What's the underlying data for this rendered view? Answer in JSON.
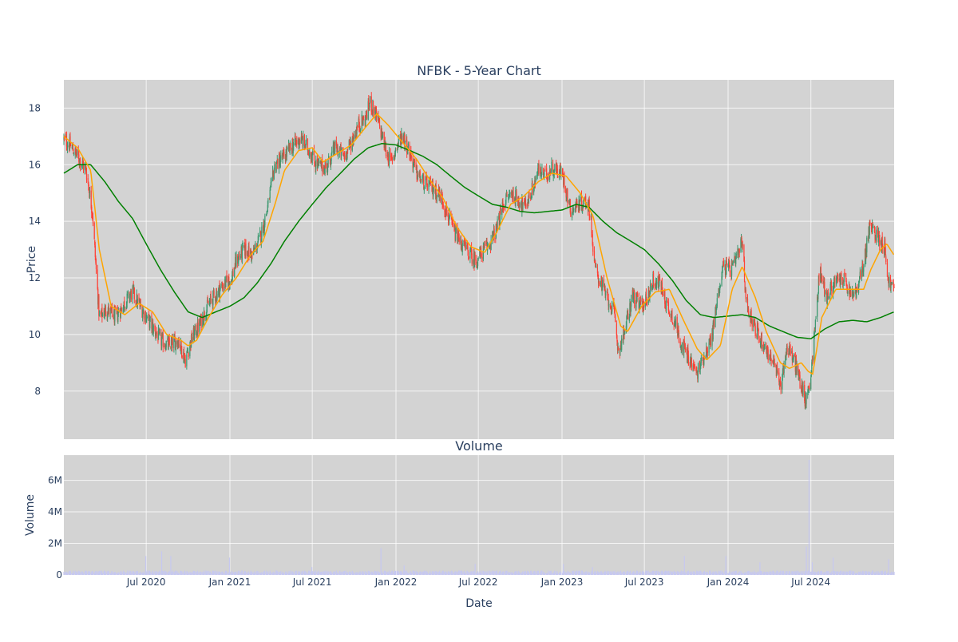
{
  "chart_data": {
    "type": "candlestick",
    "title": "NFBK - 5-Year Chart",
    "colors": {
      "increasing": "#3d9970",
      "decreasing": "#ff4136",
      "ma_short": "#ffa500",
      "ma_long": "#008000",
      "volume": "#c6c8f0",
      "plot_bg": "#d3d3d3",
      "grid": "#ffffff",
      "text": "#2a3f5f"
    },
    "x_range": [
      "2020-01-02",
      "2024-12-31"
    ],
    "x_ticks": [
      "2020-07-01",
      "2021-01-01",
      "2021-07-01",
      "2022-01-01",
      "2022-07-01",
      "2023-01-01",
      "2023-07-01",
      "2024-01-01",
      "2024-07-01"
    ],
    "x_tick_labels": [
      "Jul 2020",
      "Jan 2021",
      "Jul 2021",
      "Jan 2022",
      "Jul 2022",
      "Jan 2023",
      "Jul 2023",
      "Jan 2024",
      "Jul 2024"
    ],
    "xlabel": "Date",
    "grid": true,
    "price_panel": {
      "ylabel": "Price",
      "ylim": [
        6.3,
        19.0
      ],
      "y_ticks": [
        8,
        10,
        12,
        14,
        16,
        18
      ],
      "y_tick_labels": [
        "8",
        "10",
        "12",
        "14",
        "16",
        "18"
      ],
      "close_anchors": [
        [
          "2020-01-02",
          16.9
        ],
        [
          "2020-01-15",
          16.7
        ],
        [
          "2020-02-01",
          16.3
        ],
        [
          "2020-02-20",
          15.8
        ],
        [
          "2020-03-05",
          14.3
        ],
        [
          "2020-03-12",
          12.5
        ],
        [
          "2020-03-20",
          10.6
        ],
        [
          "2020-04-05",
          10.9
        ],
        [
          "2020-04-25",
          10.6
        ],
        [
          "2020-05-10",
          11.0
        ],
        [
          "2020-06-01",
          11.5
        ],
        [
          "2020-06-10",
          11.2
        ],
        [
          "2020-06-25",
          10.8
        ],
        [
          "2020-07-10",
          10.4
        ],
        [
          "2020-08-01",
          9.8
        ],
        [
          "2020-08-20",
          9.6
        ],
        [
          "2020-09-10",
          9.8
        ],
        [
          "2020-09-25",
          9.1
        ],
        [
          "2020-10-10",
          9.9
        ],
        [
          "2020-10-25",
          10.3
        ],
        [
          "2020-11-10",
          10.9
        ],
        [
          "2020-11-25",
          11.3
        ],
        [
          "2020-12-15",
          11.7
        ],
        [
          "2021-01-05",
          12.0
        ],
        [
          "2021-01-15",
          12.6
        ],
        [
          "2021-02-01",
          13.0
        ],
        [
          "2021-02-20",
          12.8
        ],
        [
          "2021-03-10",
          13.5
        ],
        [
          "2021-03-25",
          14.5
        ],
        [
          "2021-04-10",
          16.0
        ],
        [
          "2021-05-01",
          16.3
        ],
        [
          "2021-05-20",
          16.7
        ],
        [
          "2021-06-05",
          16.9
        ],
        [
          "2021-06-25",
          16.5
        ],
        [
          "2021-07-10",
          16.0
        ],
        [
          "2021-08-01",
          15.9
        ],
        [
          "2021-08-20",
          16.6
        ],
        [
          "2021-09-10",
          16.3
        ],
        [
          "2021-09-25",
          16.8
        ],
        [
          "2021-10-10",
          17.4
        ],
        [
          "2021-10-25",
          17.6
        ],
        [
          "2021-11-05",
          18.2
        ],
        [
          "2021-11-15",
          17.9
        ],
        [
          "2021-11-25",
          17.4
        ],
        [
          "2021-12-10",
          16.5
        ],
        [
          "2021-12-20",
          16.1
        ],
        [
          "2022-01-05",
          16.7
        ],
        [
          "2022-01-15",
          17.1
        ],
        [
          "2022-02-01",
          16.4
        ],
        [
          "2022-02-15",
          15.7
        ],
        [
          "2022-03-01",
          15.4
        ],
        [
          "2022-03-20",
          15.2
        ],
        [
          "2022-04-10",
          14.9
        ],
        [
          "2022-04-25",
          14.2
        ],
        [
          "2022-05-10",
          13.6
        ],
        [
          "2022-05-25",
          13.2
        ],
        [
          "2022-06-10",
          12.9
        ],
        [
          "2022-06-25",
          12.6
        ],
        [
          "2022-07-10",
          12.9
        ],
        [
          "2022-07-25",
          13.2
        ],
        [
          "2022-08-10",
          13.7
        ],
        [
          "2022-08-25",
          14.6
        ],
        [
          "2022-09-10",
          15.0
        ],
        [
          "2022-09-25",
          14.8
        ],
        [
          "2022-10-10",
          14.5
        ],
        [
          "2022-10-25",
          15.0
        ],
        [
          "2022-11-10",
          15.8
        ],
        [
          "2022-11-25",
          15.6
        ],
        [
          "2022-12-10",
          15.9
        ],
        [
          "2023-01-01",
          15.7
        ],
        [
          "2023-01-20",
          14.4
        ],
        [
          "2023-02-05",
          14.6
        ],
        [
          "2023-02-25",
          14.7
        ],
        [
          "2023-03-05",
          14.3
        ],
        [
          "2023-03-12",
          12.5
        ],
        [
          "2023-03-25",
          11.9
        ],
        [
          "2023-04-10",
          11.3
        ],
        [
          "2023-04-25",
          10.8
        ],
        [
          "2023-05-05",
          9.4
        ],
        [
          "2023-05-20",
          10.2
        ],
        [
          "2023-06-05",
          11.4
        ],
        [
          "2023-06-20",
          11.0
        ],
        [
          "2023-07-05",
          11.2
        ],
        [
          "2023-07-20",
          11.9
        ],
        [
          "2023-08-05",
          11.8
        ],
        [
          "2023-08-20",
          11.0
        ],
        [
          "2023-09-05",
          10.5
        ],
        [
          "2023-09-20",
          9.7
        ],
        [
          "2023-10-05",
          9.2
        ],
        [
          "2023-10-25",
          8.6
        ],
        [
          "2023-11-10",
          9.3
        ],
        [
          "2023-11-25",
          9.8
        ],
        [
          "2023-12-10",
          11.4
        ],
        [
          "2023-12-20",
          12.4
        ],
        [
          "2024-01-10",
          12.3
        ],
        [
          "2024-01-25",
          12.9
        ],
        [
          "2024-02-01",
          13.3
        ],
        [
          "2024-02-10",
          11.1
        ],
        [
          "2024-03-01",
          10.2
        ],
        [
          "2024-03-20",
          9.6
        ],
        [
          "2024-04-10",
          9.0
        ],
        [
          "2024-04-25",
          8.2
        ],
        [
          "2024-05-10",
          9.6
        ],
        [
          "2024-05-25",
          9.1
        ],
        [
          "2024-06-10",
          8.2
        ],
        [
          "2024-06-20",
          7.6
        ],
        [
          "2024-07-01",
          8.6
        ],
        [
          "2024-07-10",
          10.2
        ],
        [
          "2024-07-20",
          12.3
        ],
        [
          "2024-08-05",
          11.3
        ],
        [
          "2024-08-20",
          11.8
        ],
        [
          "2024-09-10",
          12.0
        ],
        [
          "2024-09-25",
          11.4
        ],
        [
          "2024-10-10",
          11.5
        ],
        [
          "2024-10-25",
          12.5
        ],
        [
          "2024-11-07",
          13.8
        ],
        [
          "2024-11-25",
          13.5
        ],
        [
          "2024-12-10",
          13.1
        ],
        [
          "2024-12-18",
          11.9
        ],
        [
          "2024-12-31",
          11.6
        ]
      ],
      "ma_short_anchors": [
        [
          "2020-01-02",
          17.0
        ],
        [
          "2020-02-01",
          16.6
        ],
        [
          "2020-03-01",
          15.8
        ],
        [
          "2020-03-20",
          13.0
        ],
        [
          "2020-04-15",
          11.0
        ],
        [
          "2020-05-15",
          10.7
        ],
        [
          "2020-06-15",
          11.1
        ],
        [
          "2020-07-15",
          10.8
        ],
        [
          "2020-08-15",
          10.0
        ],
        [
          "2020-09-15",
          9.8
        ],
        [
          "2020-10-01",
          9.6
        ],
        [
          "2020-10-20",
          9.8
        ],
        [
          "2020-11-15",
          10.6
        ],
        [
          "2020-12-15",
          11.4
        ],
        [
          "2021-01-15",
          12.0
        ],
        [
          "2021-02-15",
          12.8
        ],
        [
          "2021-03-15",
          13.3
        ],
        [
          "2021-04-10",
          14.6
        ],
        [
          "2021-05-01",
          15.8
        ],
        [
          "2021-06-01",
          16.5
        ],
        [
          "2021-07-01",
          16.6
        ],
        [
          "2021-07-25",
          16.1
        ],
        [
          "2021-08-25",
          16.4
        ],
        [
          "2021-09-25",
          16.7
        ],
        [
          "2021-10-25",
          17.3
        ],
        [
          "2021-11-20",
          17.8
        ],
        [
          "2021-12-15",
          17.4
        ],
        [
          "2022-01-15",
          16.8
        ],
        [
          "2022-02-15",
          16.2
        ],
        [
          "2022-03-15",
          15.5
        ],
        [
          "2022-04-15",
          14.8
        ],
        [
          "2022-05-15",
          13.8
        ],
        [
          "2022-06-15",
          13.1
        ],
        [
          "2022-07-15",
          12.9
        ],
        [
          "2022-08-10",
          13.6
        ],
        [
          "2022-09-10",
          14.6
        ],
        [
          "2022-10-10",
          14.9
        ],
        [
          "2022-11-10",
          15.4
        ],
        [
          "2022-12-10",
          15.7
        ],
        [
          "2023-01-10",
          15.6
        ],
        [
          "2023-02-10",
          15.0
        ],
        [
          "2023-03-10",
          14.2
        ],
        [
          "2023-04-10",
          12.0
        ],
        [
          "2023-05-10",
          10.3
        ],
        [
          "2023-05-25",
          10.1
        ],
        [
          "2023-06-25",
          11.0
        ],
        [
          "2023-07-25",
          11.5
        ],
        [
          "2023-08-25",
          11.6
        ],
        [
          "2023-09-25",
          10.5
        ],
        [
          "2023-10-25",
          9.5
        ],
        [
          "2023-11-15",
          9.1
        ],
        [
          "2023-12-15",
          9.6
        ],
        [
          "2024-01-10",
          11.6
        ],
        [
          "2024-02-01",
          12.4
        ],
        [
          "2024-03-01",
          11.3
        ],
        [
          "2024-03-25",
          10.1
        ],
        [
          "2024-04-25",
          9.0
        ],
        [
          "2024-05-15",
          8.8
        ],
        [
          "2024-06-10",
          9.0
        ],
        [
          "2024-06-25",
          8.7
        ],
        [
          "2024-07-05",
          8.6
        ],
        [
          "2024-07-25",
          10.6
        ],
        [
          "2024-08-25",
          11.6
        ],
        [
          "2024-09-25",
          11.6
        ],
        [
          "2024-10-25",
          11.6
        ],
        [
          "2024-11-10",
          12.3
        ],
        [
          "2024-12-01",
          13.0
        ],
        [
          "2024-12-15",
          13.2
        ],
        [
          "2024-12-31",
          12.8
        ]
      ],
      "ma_long_anchors": [
        [
          "2020-01-02",
          15.7
        ],
        [
          "2020-02-01",
          16.0
        ],
        [
          "2020-03-01",
          16.0
        ],
        [
          "2020-04-01",
          15.4
        ],
        [
          "2020-05-01",
          14.7
        ],
        [
          "2020-06-01",
          14.1
        ],
        [
          "2020-07-01",
          13.2
        ],
        [
          "2020-08-01",
          12.3
        ],
        [
          "2020-09-01",
          11.5
        ],
        [
          "2020-10-01",
          10.8
        ],
        [
          "2020-11-01",
          10.6
        ],
        [
          "2020-12-01",
          10.8
        ],
        [
          "2021-01-01",
          11.0
        ],
        [
          "2021-02-01",
          11.3
        ],
        [
          "2021-03-01",
          11.8
        ],
        [
          "2021-04-01",
          12.5
        ],
        [
          "2021-05-01",
          13.3
        ],
        [
          "2021-06-01",
          14.0
        ],
        [
          "2021-07-01",
          14.6
        ],
        [
          "2021-08-01",
          15.2
        ],
        [
          "2021-09-01",
          15.7
        ],
        [
          "2021-10-01",
          16.2
        ],
        [
          "2021-11-01",
          16.6
        ],
        [
          "2021-12-01",
          16.75
        ],
        [
          "2022-01-01",
          16.7
        ],
        [
          "2022-02-01",
          16.5
        ],
        [
          "2022-03-01",
          16.3
        ],
        [
          "2022-04-01",
          16.0
        ],
        [
          "2022-05-01",
          15.6
        ],
        [
          "2022-06-01",
          15.2
        ],
        [
          "2022-07-01",
          14.9
        ],
        [
          "2022-08-01",
          14.6
        ],
        [
          "2022-09-01",
          14.5
        ],
        [
          "2022-10-01",
          14.35
        ],
        [
          "2022-11-01",
          14.3
        ],
        [
          "2022-12-01",
          14.35
        ],
        [
          "2023-01-01",
          14.4
        ],
        [
          "2023-02-01",
          14.6
        ],
        [
          "2023-03-01",
          14.5
        ],
        [
          "2023-04-01",
          14.0
        ],
        [
          "2023-05-01",
          13.6
        ],
        [
          "2023-06-01",
          13.3
        ],
        [
          "2023-07-01",
          13.0
        ],
        [
          "2023-08-01",
          12.5
        ],
        [
          "2023-09-01",
          11.9
        ],
        [
          "2023-10-01",
          11.2
        ],
        [
          "2023-11-01",
          10.7
        ],
        [
          "2023-12-01",
          10.6
        ],
        [
          "2024-01-01",
          10.65
        ],
        [
          "2024-02-01",
          10.7
        ],
        [
          "2024-03-01",
          10.6
        ],
        [
          "2024-04-01",
          10.3
        ],
        [
          "2024-05-01",
          10.1
        ],
        [
          "2024-06-01",
          9.9
        ],
        [
          "2024-07-01",
          9.85
        ],
        [
          "2024-08-01",
          10.2
        ],
        [
          "2024-09-01",
          10.45
        ],
        [
          "2024-10-01",
          10.5
        ],
        [
          "2024-11-01",
          10.45
        ],
        [
          "2024-12-01",
          10.6
        ],
        [
          "2024-12-31",
          10.8
        ]
      ]
    },
    "volume_panel": {
      "subtitle": "Volume",
      "ylabel": "Volume",
      "ylim": [
        0,
        7600000
      ],
      "y_ticks": [
        0,
        2000000,
        4000000,
        6000000
      ],
      "y_tick_labels": [
        "0",
        "2M",
        "4M",
        "6M"
      ],
      "typical_volume": 200000,
      "spikes": [
        [
          "2020-07-01",
          1200000
        ],
        [
          "2020-08-05",
          1500000
        ],
        [
          "2020-08-25",
          1200000
        ],
        [
          "2021-01-01",
          1100000
        ],
        [
          "2021-07-01",
          500000
        ],
        [
          "2021-11-30",
          1700000
        ],
        [
          "2022-01-20",
          600000
        ],
        [
          "2022-06-25",
          700000
        ],
        [
          "2023-01-05",
          700000
        ],
        [
          "2023-03-10",
          500000
        ],
        [
          "2023-09-28",
          1200000
        ],
        [
          "2023-12-28",
          1200000
        ],
        [
          "2024-03-10",
          800000
        ],
        [
          "2024-06-28",
          7300000
        ],
        [
          "2024-06-22",
          1800000
        ],
        [
          "2024-07-05",
          800000
        ],
        [
          "2024-08-20",
          1100000
        ],
        [
          "2024-12-20",
          1000000
        ]
      ]
    }
  }
}
